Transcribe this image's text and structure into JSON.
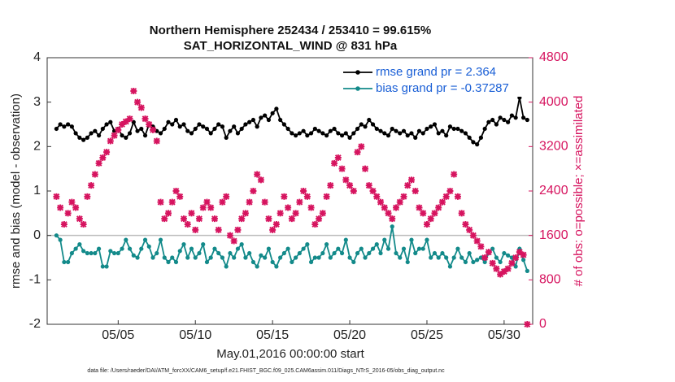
{
  "chart_data": {
    "type": "line",
    "title": "Northern Hemisphere 252434 / 253410 = 99.615%",
    "subtitle": "SAT_HORIZONTAL_WIND @ 831 hPa",
    "xlabel": "May.01,2016 00:00:00 start",
    "ylabel": "rmse and bias (model - observation)",
    "y2label": "# of obs: o=possible; ×=assimilated",
    "footnote": "data file: /Users/raeder/DAI/ATM_forcXX/CAM6_setup/f.e21.FHIST_BGC.f09_025.CAM6assim.011/Diags_NTrS_2016-05/obs_diag_output.nc",
    "legend": "northeast",
    "x": [
      1,
      1.25,
      1.5,
      1.75,
      2,
      2.25,
      2.5,
      2.75,
      3,
      3.25,
      3.5,
      3.75,
      4,
      4.25,
      4.5,
      4.75,
      5,
      5.25,
      5.5,
      5.75,
      6,
      6.25,
      6.5,
      6.75,
      7,
      7.25,
      7.5,
      7.75,
      8,
      8.25,
      8.5,
      8.75,
      9,
      9.25,
      9.5,
      9.75,
      10,
      10.25,
      10.5,
      10.75,
      11,
      11.25,
      11.5,
      11.75,
      12,
      12.25,
      12.5,
      12.75,
      13,
      13.25,
      13.5,
      13.75,
      14,
      14.25,
      14.5,
      14.75,
      15,
      15.25,
      15.5,
      15.75,
      16,
      16.25,
      16.5,
      16.75,
      17,
      17.25,
      17.5,
      17.75,
      18,
      18.25,
      18.5,
      18.75,
      19,
      19.25,
      19.5,
      19.75,
      20,
      20.25,
      20.5,
      20.75,
      21,
      21.25,
      21.5,
      21.75,
      22,
      22.25,
      22.5,
      22.75,
      23,
      23.25,
      23.5,
      23.75,
      24,
      24.25,
      24.5,
      24.75,
      25,
      25.25,
      25.5,
      25.75,
      26,
      26.25,
      26.5,
      26.75,
      27,
      27.25,
      27.5,
      27.75,
      28,
      28.25,
      28.5,
      28.75,
      29,
      29.25,
      29.5,
      29.75,
      30,
      30.25,
      30.5,
      30.75,
      31,
      31.25,
      31.5
    ],
    "series": [
      {
        "name": "rmse grand pr = 2.364",
        "color": "#000000",
        "axis": "y",
        "values": [
          2.4,
          2.5,
          2.45,
          2.5,
          2.45,
          2.3,
          2.2,
          2.15,
          2.2,
          2.3,
          2.35,
          2.25,
          2.4,
          2.5,
          2.55,
          2.35,
          2.4,
          2.25,
          2.2,
          2.3,
          2.55,
          2.35,
          2.4,
          2.25,
          2.5,
          2.45,
          2.35,
          2.3,
          2.4,
          2.55,
          2.5,
          2.6,
          2.45,
          2.5,
          2.35,
          2.3,
          2.4,
          2.5,
          2.45,
          2.4,
          2.3,
          2.4,
          2.5,
          2.45,
          2.2,
          2.35,
          2.45,
          2.3,
          2.4,
          2.5,
          2.55,
          2.6,
          2.45,
          2.65,
          2.7,
          2.6,
          2.75,
          2.85,
          2.6,
          2.5,
          2.4,
          2.3,
          2.25,
          2.3,
          2.35,
          2.25,
          2.3,
          2.4,
          2.35,
          2.3,
          2.25,
          2.35,
          2.4,
          2.3,
          2.25,
          2.3,
          2.2,
          2.3,
          2.4,
          2.5,
          2.45,
          2.6,
          2.5,
          2.4,
          2.35,
          2.3,
          2.25,
          2.4,
          2.35,
          2.3,
          2.35,
          2.25,
          2.3,
          2.2,
          2.35,
          2.3,
          2.4,
          2.45,
          2.5,
          2.3,
          2.35,
          2.25,
          2.45,
          2.4,
          2.4,
          2.35,
          2.3,
          2.2,
          2.1,
          2.05,
          2.2,
          2.4,
          2.55,
          2.6,
          2.5,
          2.65,
          2.6,
          2.55,
          2.7,
          2.65,
          3.1,
          2.65,
          2.6
        ]
      },
      {
        "name": "bias grand pr = -0.37287",
        "color": "#138a8a",
        "axis": "y",
        "values": [
          0,
          -0.1,
          -0.6,
          -0.6,
          -0.4,
          -0.3,
          -0.2,
          -0.35,
          -0.4,
          -0.4,
          -0.4,
          -0.3,
          -0.7,
          -0.7,
          -0.35,
          -0.4,
          -0.4,
          -0.3,
          -0.1,
          -0.3,
          -0.45,
          -0.5,
          -0.3,
          -0.1,
          -0.25,
          -0.5,
          -0.4,
          -0.1,
          -0.5,
          -0.6,
          -0.5,
          -0.6,
          -0.35,
          -0.2,
          -0.5,
          -0.3,
          -0.5,
          -0.4,
          -0.2,
          -0.6,
          -0.5,
          -0.3,
          -0.4,
          -0.5,
          -0.7,
          -0.4,
          -0.5,
          -0.3,
          -0.2,
          -0.5,
          -0.4,
          -0.6,
          -0.7,
          -0.45,
          -0.5,
          -0.3,
          -0.6,
          -0.7,
          -0.5,
          -0.4,
          -0.3,
          -0.6,
          -0.5,
          -0.4,
          -0.3,
          -0.2,
          -0.6,
          -0.5,
          -0.5,
          -0.4,
          -0.2,
          -0.5,
          -0.4,
          -0.3,
          -0.4,
          -0.1,
          -0.5,
          -0.6,
          -0.4,
          -0.3,
          -0.5,
          -0.4,
          -0.3,
          -0.2,
          -0.4,
          -0.1,
          -0.3,
          0.2,
          -0.4,
          -0.5,
          -0.3,
          -0.6,
          -0.1,
          -0.4,
          -0.3,
          -0.3,
          -0.1,
          -0.5,
          -0.4,
          -0.5,
          -0.4,
          -0.5,
          -0.7,
          -0.5,
          -0.3,
          -0.5,
          -0.6,
          -0.4,
          -0.6,
          -0.55,
          -0.5,
          -0.6,
          -0.4,
          -0.3,
          -0.5,
          -0.6,
          -0.4,
          -0.45,
          -0.5,
          -0.7,
          -0.3,
          -0.55,
          -0.8
        ]
      },
      {
        "color": "#d6145f",
        "axis": "y2",
        "values": [
          2300,
          2100,
          1800,
          2000,
          2200,
          2100,
          1900,
          1800,
          2300,
          2500,
          2700,
          2900,
          3000,
          3100,
          3300,
          3400,
          3500,
          3600,
          3650,
          3700,
          4200,
          4000,
          3900,
          3700,
          3600,
          3500,
          3300,
          2200,
          1900,
          2000,
          2200,
          2400,
          2300,
          1900,
          1800,
          2000,
          1700,
          1900,
          2100,
          2200,
          2100,
          1900,
          1700,
          2200,
          2300,
          1600,
          1500,
          1700,
          1900,
          2000,
          2200,
          2400,
          2700,
          2600,
          2200,
          1900,
          1700,
          1800,
          2000,
          2300,
          2100,
          1900,
          2000,
          2200,
          2400,
          2300,
          2100,
          1800,
          1900,
          2000,
          2300,
          2500,
          2900,
          3000,
          2800,
          2600,
          2500,
          2400,
          3100,
          3200,
          2800,
          2500,
          2400,
          2300,
          2200,
          2100,
          2000,
          1900,
          2100,
          2200,
          2300,
          2500,
          2600,
          2400,
          2100,
          2000,
          1800,
          1900,
          2000,
          2100,
          2200,
          2300,
          2400,
          2700,
          2300,
          2000,
          1800,
          1700,
          1600,
          1500,
          1400,
          1200,
          1300,
          1100,
          1000,
          900,
          950,
          1000,
          1100,
          1200,
          1300,
          1250,
          0
        ]
      }
    ],
    "xlim": [
      0.4,
      31.85
    ],
    "xticks": [
      {
        "value": 5,
        "label": "05/05"
      },
      {
        "value": 10,
        "label": "05/10"
      },
      {
        "value": 15,
        "label": "05/15"
      },
      {
        "value": 20,
        "label": "05/20"
      },
      {
        "value": 25,
        "label": "05/25"
      },
      {
        "value": 30,
        "label": "05/30"
      }
    ],
    "ylim": [
      -2,
      4
    ],
    "yticks": [
      -2,
      -1,
      0,
      1,
      2,
      3,
      4
    ],
    "y2lim": [
      0,
      4800
    ],
    "y2ticks": [
      0,
      800,
      1600,
      2400,
      3200,
      4000,
      4800
    ]
  }
}
